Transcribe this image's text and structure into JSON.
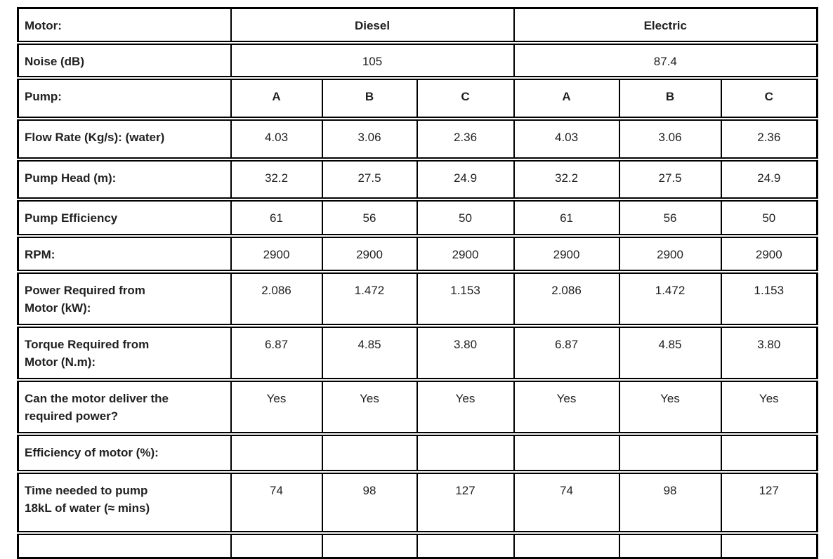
{
  "page": {
    "background_color": "#ffffff",
    "border_color": "#000000",
    "text_color": "#212121"
  },
  "table": {
    "motor_row": {
      "label": "Motor:",
      "groups": [
        "Diesel",
        "Electric"
      ]
    },
    "noise_row": {
      "label": "Noise (dB)",
      "values": [
        "105",
        "87.4"
      ]
    },
    "pump_row": {
      "label": "Pump:",
      "values": [
        "A",
        "B",
        "C",
        "A",
        "B",
        "C"
      ]
    },
    "data_rows": [
      {
        "label": "Flow Rate (Kg/s): (water)",
        "values": [
          "4.03",
          "3.06",
          "2.36",
          "4.03",
          "3.06",
          "2.36"
        ]
      },
      {
        "label": "Pump Head (m):",
        "values": [
          "32.2",
          "27.5",
          "24.9",
          "32.2",
          "27.5",
          "24.9"
        ]
      },
      {
        "label": "Pump Efficiency",
        "values": [
          "61",
          "56",
          "50",
          "61",
          "56",
          "50"
        ]
      },
      {
        "label": "RPM:",
        "values": [
          "2900",
          "2900",
          "2900",
          "2900",
          "2900",
          "2900"
        ]
      },
      {
        "label": "Power Required from\nMotor (kW):",
        "values": [
          "2.086",
          "1.472",
          "1.153",
          "2.086",
          "1.472",
          "1.153"
        ]
      },
      {
        "label": "Torque Required from\nMotor (N.m):",
        "values": [
          "6.87",
          "4.85",
          "3.80",
          "6.87",
          "4.85",
          "3.80"
        ]
      },
      {
        "label": "Can the motor deliver the\nrequired power?",
        "values": [
          "Yes",
          "Yes",
          "Yes",
          "Yes",
          "Yes",
          "Yes"
        ]
      },
      {
        "label": "Efficiency of motor (%):",
        "values": [
          "",
          "",
          "",
          "",
          "",
          ""
        ]
      },
      {
        "label": "Time needed to pump\n18kL of water (≈ mins)",
        "values": [
          "74",
          "98",
          "127",
          "74",
          "98",
          "127"
        ]
      },
      {
        "label": "",
        "values": [
          "",
          "",
          "",
          "",
          "",
          ""
        ]
      }
    ]
  }
}
